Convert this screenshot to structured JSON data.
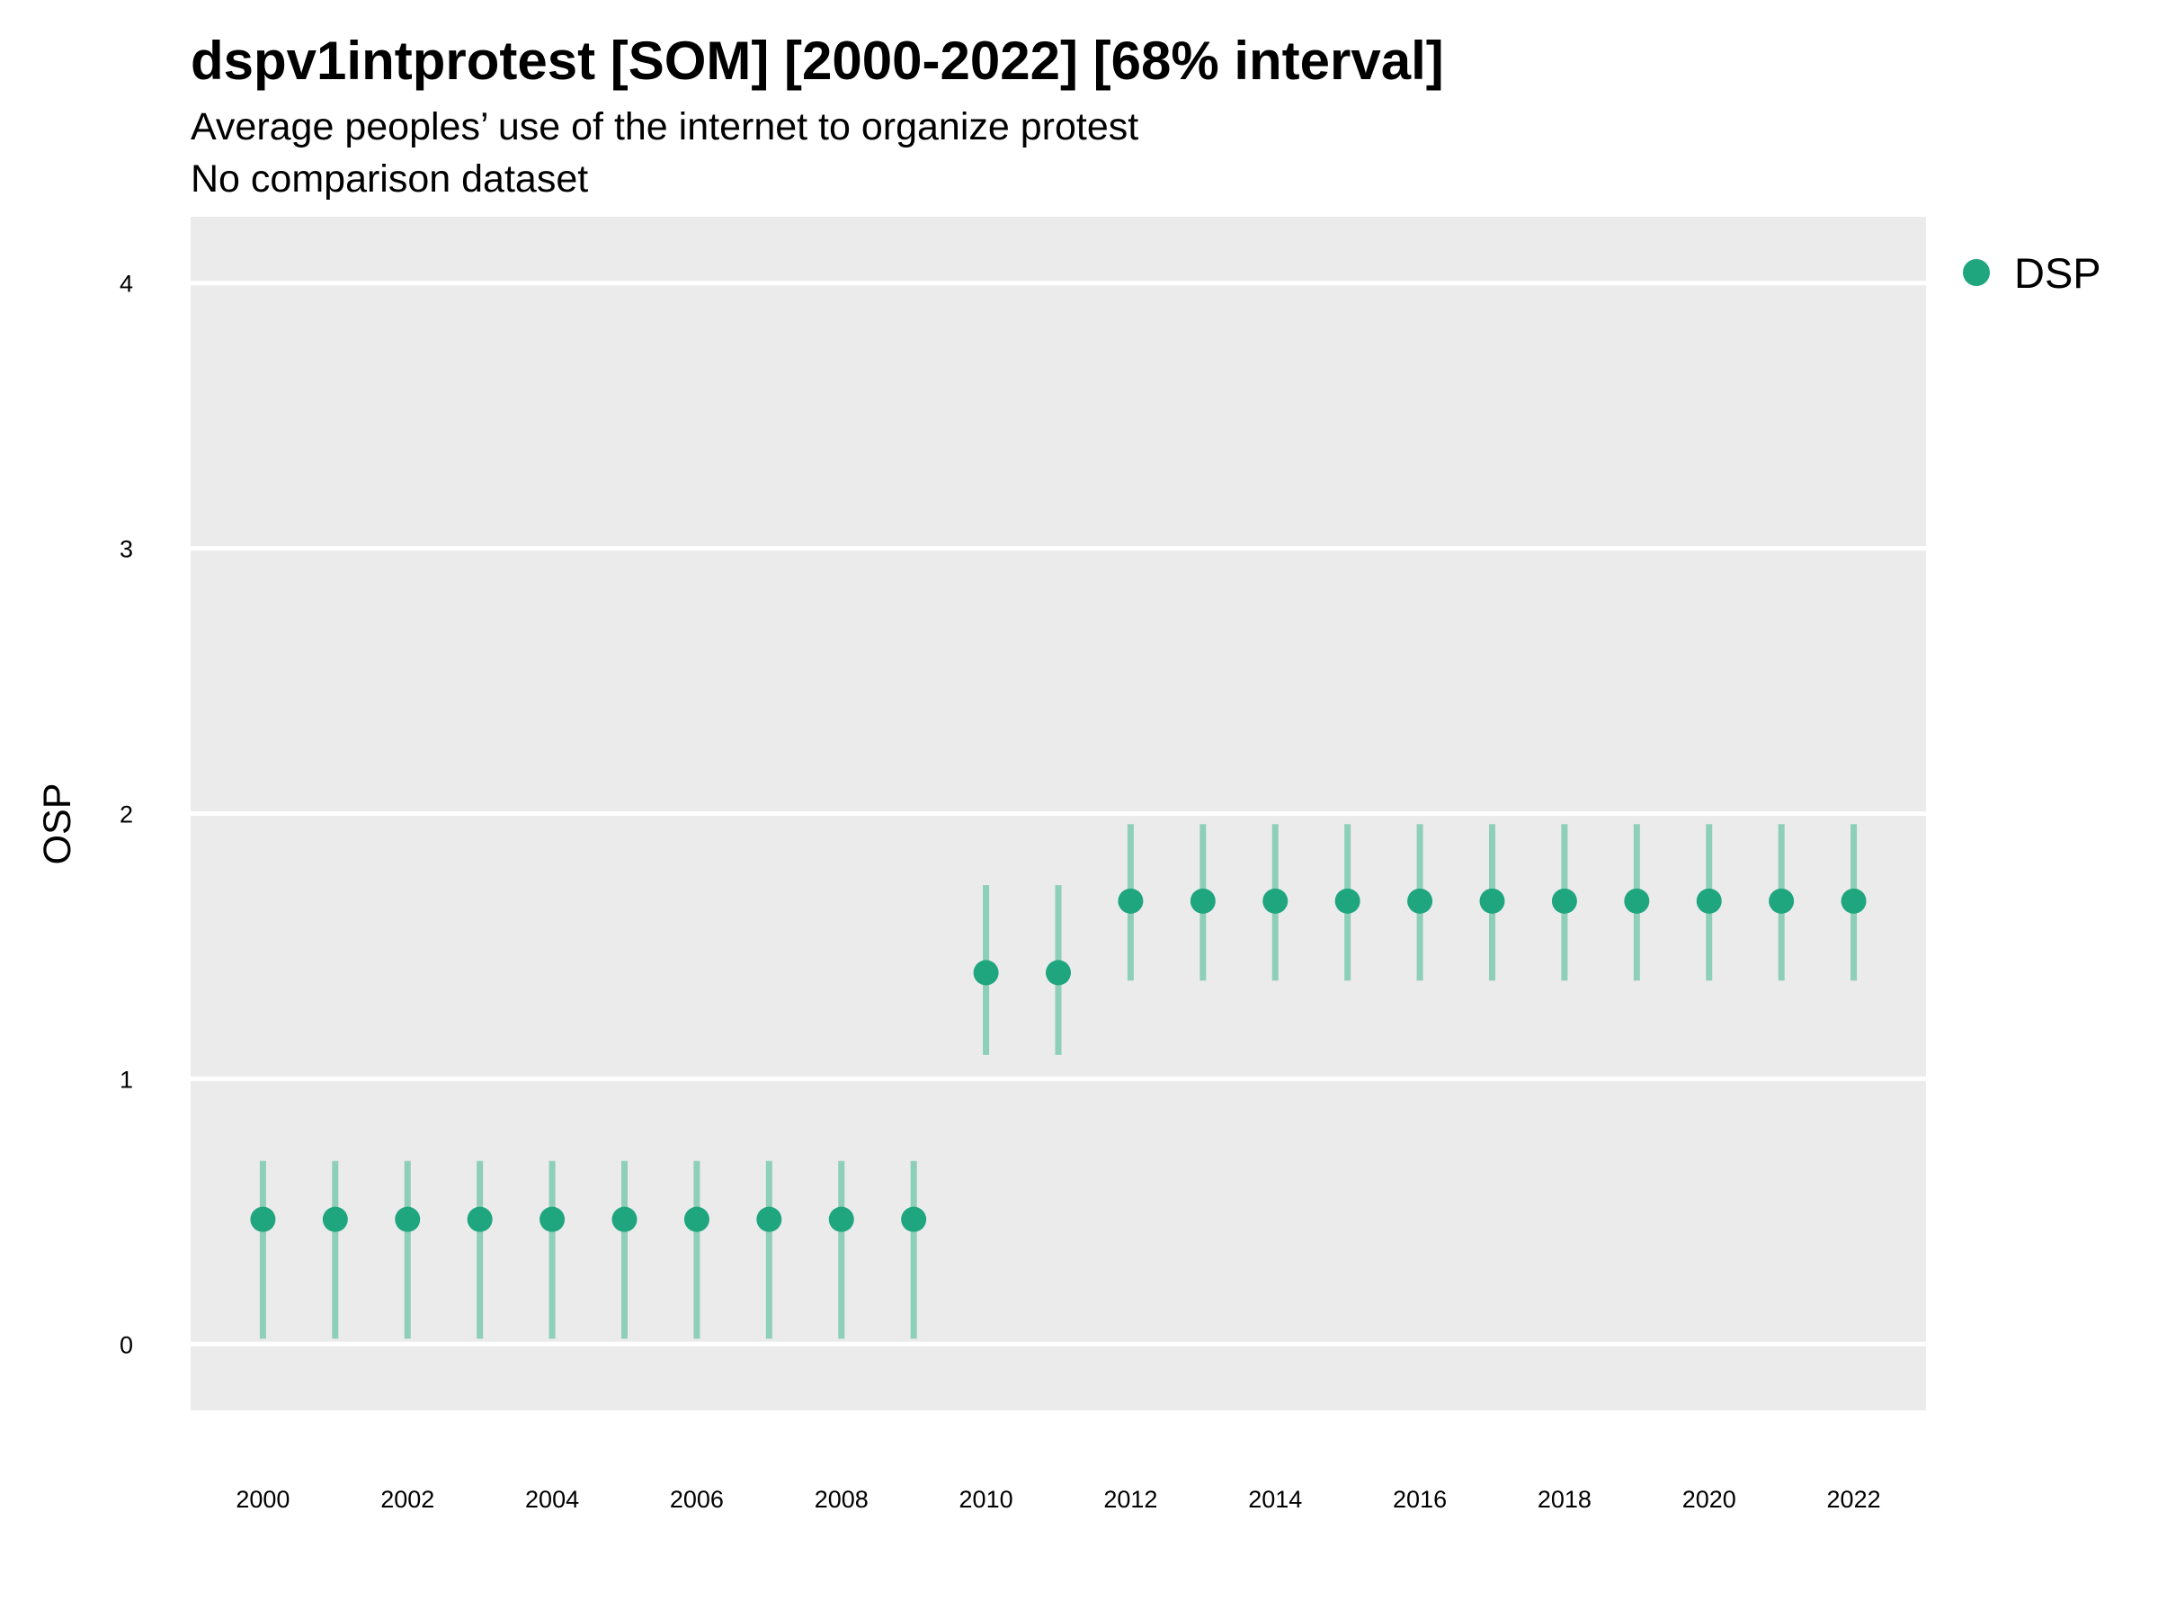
{
  "chart_data": {
    "type": "scatter",
    "title": "dspv1intprotest [SOM] [2000-2022] [68% interval]",
    "subtitle": "Average peoples’ use of the internet to organize protest",
    "subtitle2": "No comparison dataset",
    "xlabel": "",
    "ylabel": "OSP",
    "xlim": [
      1999,
      2023
    ],
    "ylim": [
      -0.25,
      4.25
    ],
    "x_ticks": [
      2000,
      2002,
      2004,
      2006,
      2008,
      2010,
      2012,
      2014,
      2016,
      2018,
      2020,
      2022
    ],
    "y_ticks": [
      0,
      1,
      2,
      3,
      4
    ],
    "grid": true,
    "legend_position": "right",
    "colors": {
      "series": "#1fa67f",
      "interval": "#8dcfb8",
      "panel": "#ebebeb",
      "grid": "#ffffff"
    },
    "series": [
      {
        "name": "DSP",
        "x": [
          2000,
          2001,
          2002,
          2003,
          2004,
          2005,
          2006,
          2007,
          2008,
          2009,
          2010,
          2011,
          2012,
          2013,
          2014,
          2015,
          2016,
          2017,
          2018,
          2019,
          2020,
          2021,
          2022
        ],
        "y": [
          0.47,
          0.47,
          0.47,
          0.47,
          0.47,
          0.47,
          0.47,
          0.47,
          0.47,
          0.47,
          1.4,
          1.4,
          1.67,
          1.67,
          1.67,
          1.67,
          1.67,
          1.67,
          1.67,
          1.67,
          1.67,
          1.67,
          1.67
        ],
        "lower": [
          0.02,
          0.02,
          0.02,
          0.02,
          0.02,
          0.02,
          0.02,
          0.02,
          0.02,
          0.02,
          1.09,
          1.09,
          1.37,
          1.37,
          1.37,
          1.37,
          1.37,
          1.37,
          1.37,
          1.37,
          1.37,
          1.37,
          1.37
        ],
        "upper": [
          0.69,
          0.69,
          0.69,
          0.69,
          0.69,
          0.69,
          0.69,
          0.69,
          0.69,
          0.69,
          1.73,
          1.73,
          1.96,
          1.96,
          1.96,
          1.96,
          1.96,
          1.96,
          1.96,
          1.96,
          1.96,
          1.96,
          1.96
        ]
      }
    ]
  }
}
